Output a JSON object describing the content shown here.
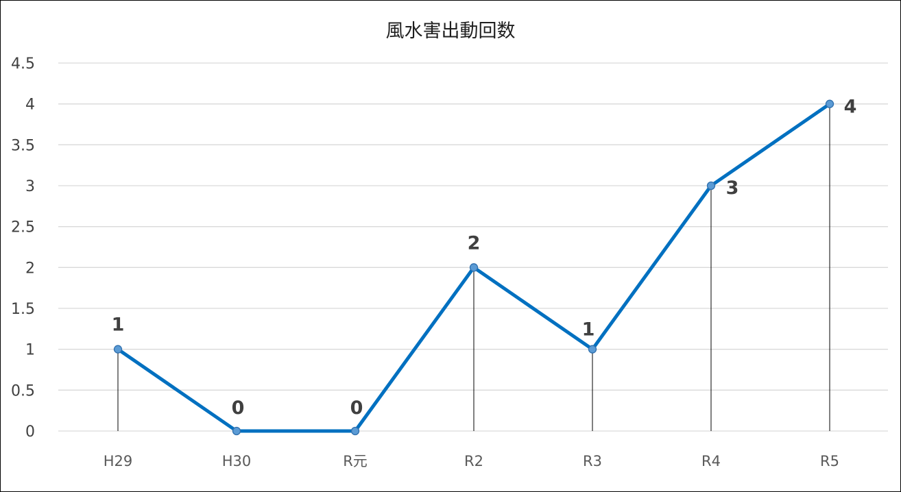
{
  "chart_data": {
    "type": "line",
    "title": "風水害出動回数",
    "xlabel": "",
    "ylabel": "",
    "categories": [
      "H29",
      "H30",
      "R元",
      "R2",
      "R3",
      "R4",
      "R5"
    ],
    "series": [
      {
        "values": [
          1,
          0,
          0,
          2,
          1,
          3,
          4
        ],
        "color": "#0070c0"
      }
    ],
    "ylim": [
      0,
      4.5
    ],
    "yticks": [
      "0",
      "0.5",
      "1",
      "1.5",
      "2",
      "2.5",
      "3",
      "3.5",
      "4",
      "4.5"
    ],
    "data_labels": [
      "1",
      "0",
      "0",
      "2",
      "1",
      "3",
      "4"
    ],
    "grid": true,
    "drop_lines": true,
    "markers": true,
    "legend": "none"
  }
}
